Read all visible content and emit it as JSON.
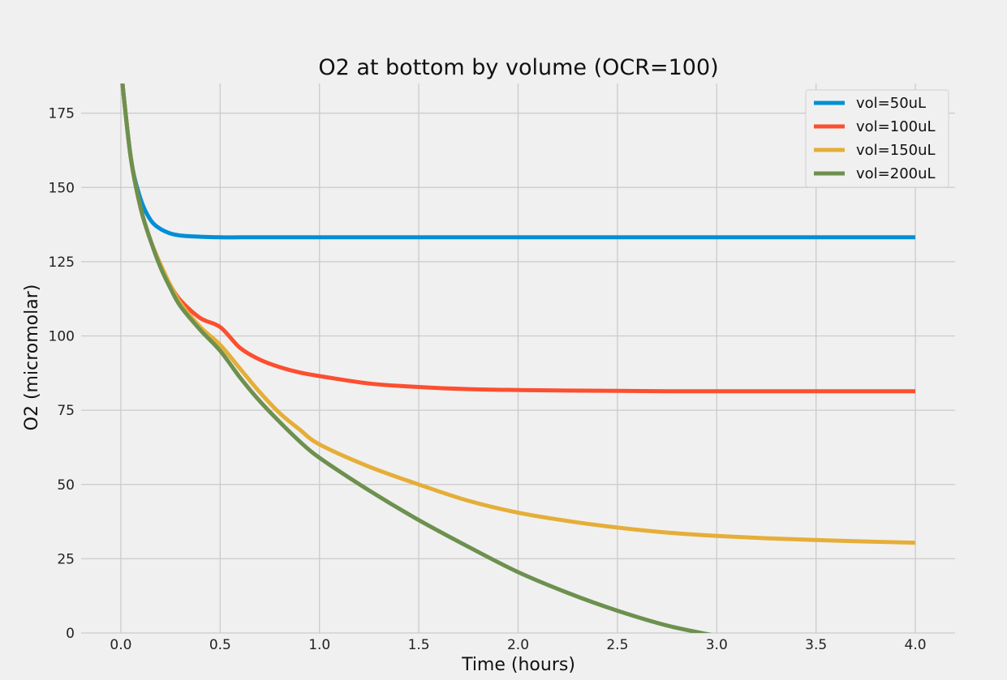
{
  "chart_data": {
    "type": "line",
    "title": "O2 at bottom by volume (OCR=100)",
    "xlabel": "Time (hours)",
    "ylabel": "O2 (micromolar)",
    "xlim": [
      -0.2,
      4.2
    ],
    "ylim": [
      0,
      185
    ],
    "xticks": [
      "0.0",
      "0.5",
      "1.0",
      "1.5",
      "2.0",
      "2.5",
      "3.0",
      "3.5",
      "4.0"
    ],
    "yticks": [
      "0",
      "25",
      "50",
      "75",
      "100",
      "125",
      "150",
      "175"
    ],
    "grid": true,
    "legend_position": "top-right",
    "x": [
      0,
      0.05,
      0.1,
      0.15,
      0.2,
      0.25,
      0.3,
      0.4,
      0.5,
      0.6,
      0.7,
      0.8,
      0.9,
      1.0,
      1.25,
      1.5,
      1.75,
      2.0,
      2.25,
      2.5,
      2.75,
      3.0,
      3.25,
      3.5,
      3.75,
      4.0
    ],
    "series": [
      {
        "name": "vol=50uL",
        "color": "#008fd5",
        "values": [
          190,
          160,
          146,
          139,
          136,
          134.5,
          133.8,
          133.4,
          133.2,
          133.2,
          133.2,
          133.2,
          133.2,
          133.2,
          133.2,
          133.2,
          133.2,
          133.2,
          133.2,
          133.2,
          133.2,
          133.2,
          133.2,
          133.2,
          133.2,
          133.2
        ]
      },
      {
        "name": "vol=100uL",
        "color": "#fc4f30",
        "values": [
          190,
          160,
          143,
          132,
          124,
          117,
          112,
          106,
          103,
          96,
          92,
          89.5,
          87.7,
          86.5,
          84,
          82.8,
          82.1,
          81.8,
          81.6,
          81.5,
          81.4,
          81.4,
          81.4,
          81.4,
          81.4,
          81.4
        ]
      },
      {
        "name": "vol=150uL",
        "color": "#e5ae38",
        "values": [
          190,
          160,
          143,
          132,
          124,
          117,
          111,
          103,
          97,
          89,
          81,
          74,
          68.5,
          63.5,
          56,
          50,
          44.5,
          40.5,
          37.7,
          35.5,
          33.8,
          32.7,
          31.9,
          31.3,
          30.8,
          30.4
        ]
      },
      {
        "name": "vol=200uL",
        "color": "#6d904f",
        "values": [
          190,
          160,
          143,
          132,
          123,
          116,
          110,
          102,
          95,
          86,
          78,
          71,
          64.5,
          59,
          48,
          38,
          29,
          20.5,
          13.5,
          7.5,
          2.5,
          -1,
          null,
          null,
          null,
          null
        ]
      }
    ]
  }
}
